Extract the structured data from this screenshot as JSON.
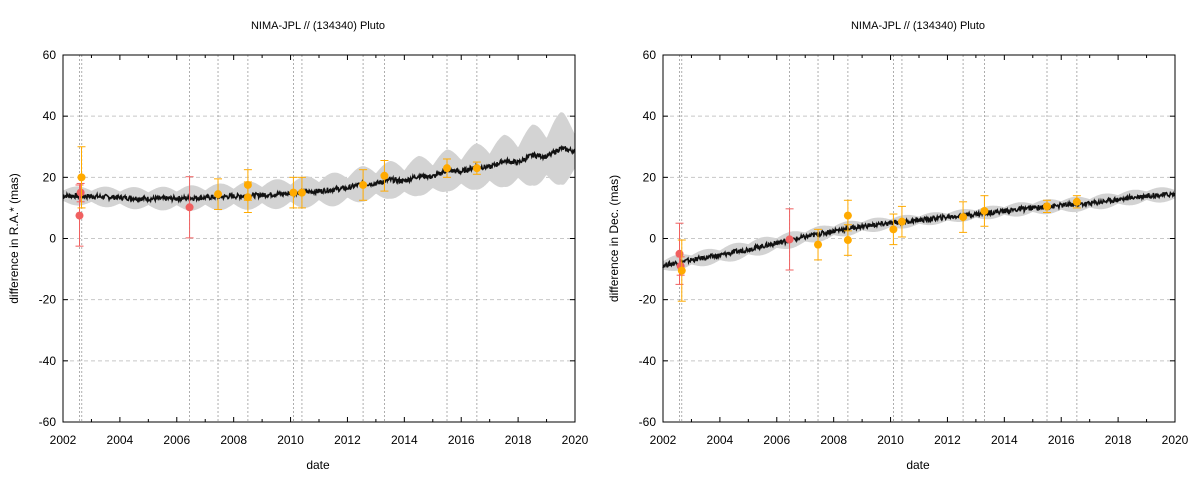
{
  "chart_data": [
    {
      "type": "scatter",
      "title": "NIMA-JPL // (134340) Pluto",
      "xlabel": "date",
      "ylabel": "difference in R.A.* (mas)",
      "xlim": [
        2002,
        2020
      ],
      "ylim": [
        -60,
        60
      ],
      "xticks": [
        2002,
        2004,
        2006,
        2008,
        2010,
        2012,
        2014,
        2016,
        2018,
        2020
      ],
      "yticks": [
        -60,
        -40,
        -20,
        0,
        20,
        40,
        60
      ],
      "grid": "horizontal dashed at each y tick",
      "epochs": [
        2002.58,
        2002.66,
        2006.45,
        2007.45,
        2008.5,
        2010.1,
        2010.4,
        2012.55,
        2013.3,
        2015.5,
        2016.55
      ],
      "model_line": {
        "color": "#111111",
        "points": [
          [
            2002,
            14.0
          ],
          [
            2003,
            13.8
          ],
          [
            2004,
            13.4
          ],
          [
            2005,
            13.0
          ],
          [
            2006,
            13.1
          ],
          [
            2007,
            13.4
          ],
          [
            2008,
            13.8
          ],
          [
            2009,
            14.2
          ],
          [
            2010,
            14.8
          ],
          [
            2011,
            15.5
          ],
          [
            2012,
            16.5
          ],
          [
            2012.5,
            17.8
          ],
          [
            2013,
            18.0
          ],
          [
            2013.5,
            19.2
          ],
          [
            2014,
            18.8
          ],
          [
            2014.5,
            20.5
          ],
          [
            2015,
            20.2
          ],
          [
            2015.5,
            22.3
          ],
          [
            2016,
            21.8
          ],
          [
            2016.5,
            23.5
          ],
          [
            2017,
            23.3
          ],
          [
            2017.5,
            25.4
          ],
          [
            2018,
            24.8
          ],
          [
            2018.5,
            27.3
          ],
          [
            2019,
            26.8
          ],
          [
            2019.5,
            29.5
          ],
          [
            2020,
            28.5
          ]
        ]
      },
      "uncertainty_band": {
        "color": "#d3d3d3",
        "halfwidth": [
          [
            2002,
            3
          ],
          [
            2006,
            4
          ],
          [
            2010,
            5
          ],
          [
            2013,
            6
          ],
          [
            2016,
            7
          ],
          [
            2018,
            9
          ],
          [
            2019.6,
            12
          ],
          [
            2020,
            10
          ]
        ]
      },
      "series": [
        {
          "color": "#f06060",
          "points": [
            {
              "x": 2002.58,
              "y": 7.5,
              "err": 10
            },
            {
              "x": 2002.62,
              "y": 15.0,
              "err": 3
            },
            {
              "x": 2006.45,
              "y": 10.2,
              "err": 10
            }
          ]
        },
        {
          "color": "#ffaa00",
          "points": [
            {
              "x": 2002.65,
              "y": 20.0,
              "err": 10
            },
            {
              "x": 2007.45,
              "y": 14.5,
              "err": 5
            },
            {
              "x": 2008.5,
              "y": 17.5,
              "err": 5
            },
            {
              "x": 2008.5,
              "y": 13.5,
              "err": 5
            },
            {
              "x": 2010.1,
              "y": 15.0,
              "err": 5
            },
            {
              "x": 2010.4,
              "y": 15.0,
              "err": 5
            },
            {
              "x": 2012.55,
              "y": 17.5,
              "err": 5
            },
            {
              "x": 2013.3,
              "y": 20.5,
              "err": 5
            },
            {
              "x": 2015.5,
              "y": 23.0,
              "err": 3
            },
            {
              "x": 2016.55,
              "y": 23.0,
              "err": 2
            }
          ]
        }
      ]
    },
    {
      "type": "scatter",
      "title": "NIMA-JPL // (134340) Pluto",
      "xlabel": "date",
      "ylabel": "difference in Dec. (mas)",
      "xlim": [
        2002,
        2020
      ],
      "ylim": [
        -60,
        60
      ],
      "xticks": [
        2002,
        2004,
        2006,
        2008,
        2010,
        2012,
        2014,
        2016,
        2018,
        2020
      ],
      "yticks": [
        -60,
        -40,
        -20,
        0,
        20,
        40,
        60
      ],
      "grid": "horizontal dashed at each y tick",
      "epochs": [
        2002.58,
        2002.66,
        2006.45,
        2007.45,
        2008.5,
        2010.1,
        2010.4,
        2012.55,
        2013.3,
        2015.5,
        2016.55
      ],
      "model_line": {
        "color": "#111111",
        "points": [
          [
            2002,
            -8.8
          ],
          [
            2003,
            -7.0
          ],
          [
            2004,
            -5.5
          ],
          [
            2005,
            -3.5
          ],
          [
            2006,
            -1.5
          ],
          [
            2007,
            0.5
          ],
          [
            2008,
            2.5
          ],
          [
            2009,
            4.0
          ],
          [
            2010,
            5.0
          ],
          [
            2011,
            6.0
          ],
          [
            2012,
            7.0
          ],
          [
            2013,
            8.0
          ],
          [
            2014,
            9.0
          ],
          [
            2015,
            10.0
          ],
          [
            2016,
            10.8
          ],
          [
            2017,
            11.5
          ],
          [
            2018,
            12.8
          ],
          [
            2019,
            14.0
          ],
          [
            2020,
            14.5
          ]
        ]
      },
      "uncertainty_band": {
        "color": "#d3d3d3",
        "halfwidth": [
          [
            2002,
            2.5
          ],
          [
            2005,
            3
          ],
          [
            2008,
            2.5
          ],
          [
            2012,
            2
          ],
          [
            2016,
            2.5
          ],
          [
            2020,
            2.5
          ]
        ]
      },
      "series": [
        {
          "color": "#f06060",
          "points": [
            {
              "x": 2002.58,
              "y": -5.0,
              "err": 10
            },
            {
              "x": 2002.62,
              "y": -9.0,
              "err": 3
            },
            {
              "x": 2006.45,
              "y": -0.3,
              "err": 10
            }
          ]
        },
        {
          "color": "#ffaa00",
          "points": [
            {
              "x": 2002.66,
              "y": -10.5,
              "err": 10
            },
            {
              "x": 2007.45,
              "y": -2.0,
              "err": 5
            },
            {
              "x": 2008.5,
              "y": 7.5,
              "err": 5
            },
            {
              "x": 2008.5,
              "y": -0.5,
              "err": 5
            },
            {
              "x": 2010.1,
              "y": 3.0,
              "err": 5
            },
            {
              "x": 2010.4,
              "y": 5.5,
              "err": 5
            },
            {
              "x": 2012.55,
              "y": 7.0,
              "err": 5
            },
            {
              "x": 2013.3,
              "y": 9.0,
              "err": 5
            },
            {
              "x": 2015.5,
              "y": 10.5,
              "err": 2
            },
            {
              "x": 2016.55,
              "y": 12.0,
              "err": 2
            }
          ]
        }
      ]
    }
  ]
}
